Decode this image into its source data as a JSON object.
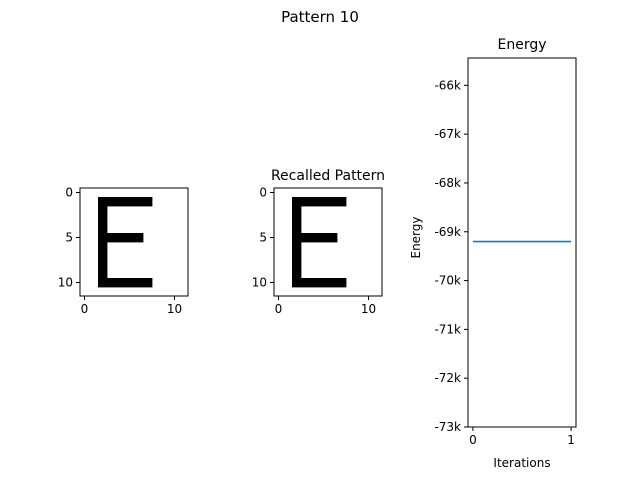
{
  "figure_title": "Pattern 10",
  "chart_data": [
    {
      "type": "heatmap",
      "title": "",
      "grid_size": [
        12,
        12
      ],
      "xticks": [
        0,
        10
      ],
      "yticks": [
        0,
        5,
        10
      ],
      "colors": {
        "on": "#000000",
        "off": "#ffffff"
      },
      "on_cells": [
        [
          1,
          2
        ],
        [
          1,
          3
        ],
        [
          1,
          4
        ],
        [
          1,
          5
        ],
        [
          1,
          6
        ],
        [
          1,
          7
        ],
        [
          2,
          2
        ],
        [
          3,
          2
        ],
        [
          4,
          2
        ],
        [
          5,
          2
        ],
        [
          5,
          3
        ],
        [
          5,
          4
        ],
        [
          5,
          5
        ],
        [
          5,
          6
        ],
        [
          6,
          2
        ],
        [
          7,
          2
        ],
        [
          8,
          2
        ],
        [
          9,
          2
        ],
        [
          10,
          2
        ],
        [
          10,
          3
        ],
        [
          10,
          4
        ],
        [
          10,
          5
        ],
        [
          10,
          6
        ],
        [
          10,
          7
        ]
      ]
    },
    {
      "type": "heatmap",
      "title": "Recalled Pattern",
      "grid_size": [
        12,
        12
      ],
      "xticks": [
        0,
        10
      ],
      "yticks": [
        0,
        5,
        10
      ],
      "colors": {
        "on": "#000000",
        "off": "#ffffff"
      },
      "on_cells": [
        [
          1,
          2
        ],
        [
          1,
          3
        ],
        [
          1,
          4
        ],
        [
          1,
          5
        ],
        [
          1,
          6
        ],
        [
          1,
          7
        ],
        [
          2,
          2
        ],
        [
          3,
          2
        ],
        [
          4,
          2
        ],
        [
          5,
          2
        ],
        [
          5,
          3
        ],
        [
          5,
          4
        ],
        [
          5,
          5
        ],
        [
          5,
          6
        ],
        [
          6,
          2
        ],
        [
          7,
          2
        ],
        [
          8,
          2
        ],
        [
          9,
          2
        ],
        [
          10,
          2
        ],
        [
          10,
          3
        ],
        [
          10,
          4
        ],
        [
          10,
          5
        ],
        [
          10,
          6
        ],
        [
          10,
          7
        ]
      ]
    },
    {
      "type": "line",
      "title": "Energy",
      "xlabel": "Iterations",
      "ylabel": "Energy",
      "xlim": [
        -0.05,
        1.05
      ],
      "ylim": [
        -73000,
        -65440
      ],
      "xticks": [
        0,
        1
      ],
      "yticks": [
        -66000,
        -67000,
        -68000,
        -69000,
        -70000,
        -71000,
        -72000,
        -73000
      ],
      "ytick_labels": [
        "-66k",
        "-67k",
        "-68k",
        "-69k",
        "-70k",
        "-71k",
        "-72k",
        "-73k"
      ],
      "series": [
        {
          "x": [
            0,
            1
          ],
          "y": [
            -69200,
            -69200
          ],
          "color": "#1f77b4"
        }
      ]
    }
  ]
}
